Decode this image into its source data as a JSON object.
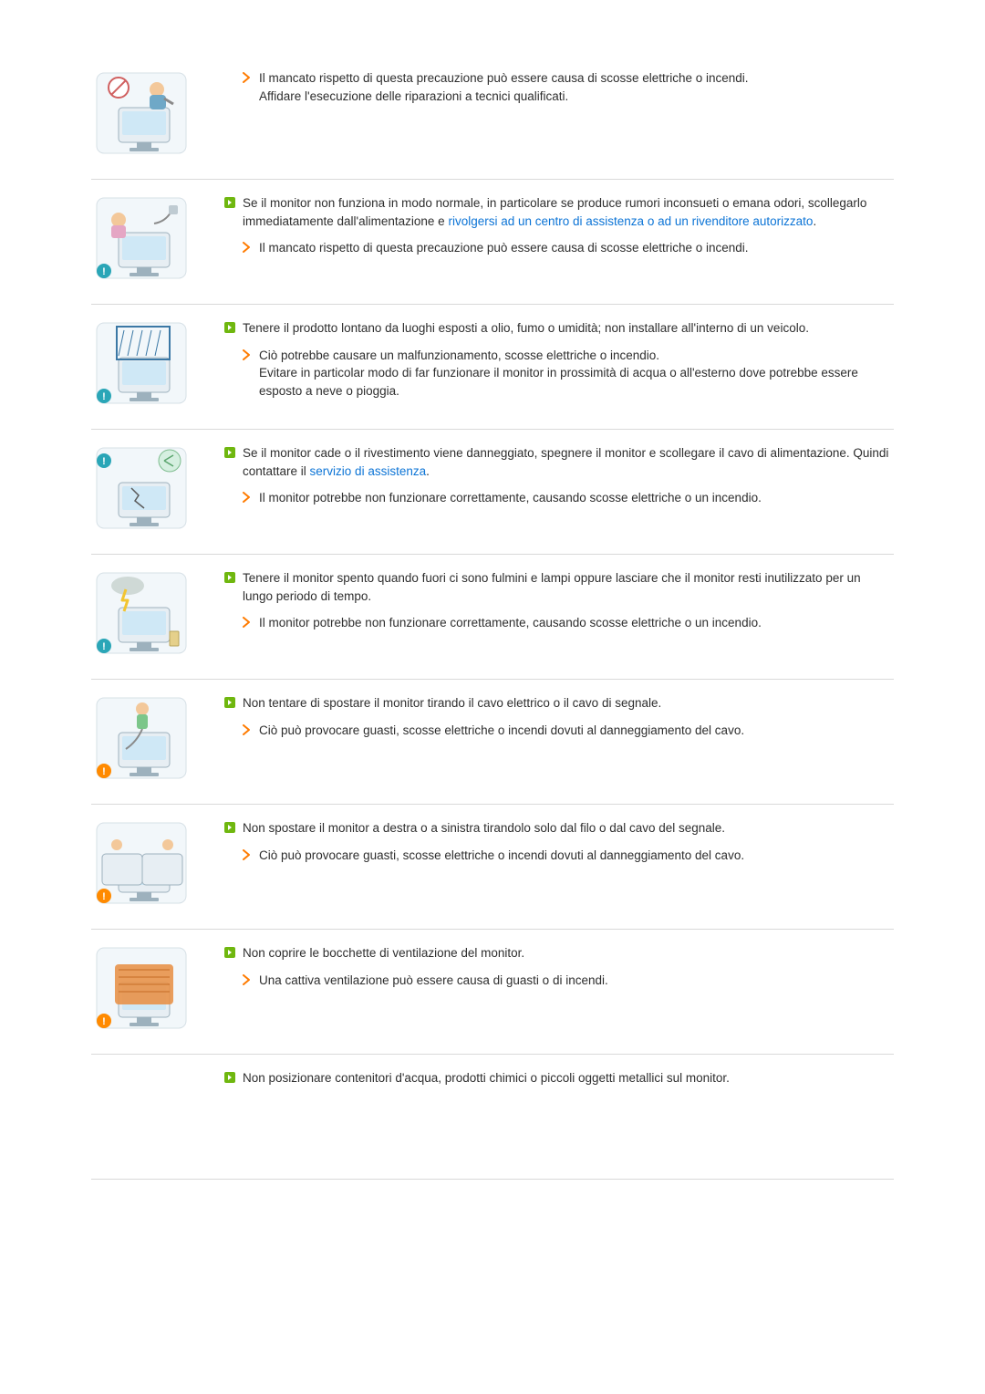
{
  "colors": {
    "text": "#2e2e2e",
    "link": "#0c74d6",
    "bullet_green": "#6fb70f",
    "bullet_orange": "#ff7b00",
    "divider": "#d9d9d9",
    "background": "#ffffff"
  },
  "typography": {
    "font_family": "Arial",
    "body_size_pt": 10,
    "line_height": 1.45
  },
  "sections": [
    {
      "has_illustration": true,
      "illustration_name": "repairman-monitor-icon",
      "has_lead": false,
      "sub": {
        "main": "Il mancato rispetto di questa precauzione può essere causa di scosse elettriche o incendi.",
        "extra": "Affidare l'esecuzione delle riparazioni a tecnici qualificati."
      }
    },
    {
      "has_illustration": true,
      "illustration_name": "unplug-monitor-icon",
      "lead": {
        "before": "Se il monitor non funziona in modo normale, in particolare se produce rumori inconsueti o emana odori, scollegarlo immediatamente dall'alimentazione e ",
        "link": "rivolgersi ad un centro di assistenza o ad un rivenditore autorizzato",
        "after": "."
      },
      "sub": {
        "main": "Il mancato rispetto di questa precauzione può essere causa di scosse elettriche o incendi."
      }
    },
    {
      "has_illustration": true,
      "illustration_name": "humidity-monitor-icon",
      "lead": {
        "before": "Tenere il prodotto lontano da luoghi esposti a olio, fumo o umidità; non installare all'interno di un veicolo."
      },
      "sub": {
        "main": "Ciò potrebbe causare un malfunzionamento, scosse elettriche o incendio.",
        "extra": "Evitare in particolar modo di far funzionare il monitor in prossimità di acqua o all'esterno dove potrebbe essere esposto a neve o pioggia."
      }
    },
    {
      "has_illustration": true,
      "illustration_name": "cracked-monitor-icon",
      "lead": {
        "before": "Se il monitor cade o il rivestimento viene danneggiato, spegnere il monitor e scollegare il cavo di alimentazione. Quindi contattare il ",
        "link": "servizio di assistenza",
        "after": "."
      },
      "sub": {
        "main": "Il monitor potrebbe non funzionare correttamente, causando scosse elettriche o un incendio."
      }
    },
    {
      "has_illustration": true,
      "illustration_name": "lightning-monitor-icon",
      "lead": {
        "before": "Tenere il monitor spento quando fuori ci sono fulmini e lampi oppure lasciare che il monitor resti inutilizzato per un lungo periodo di tempo."
      },
      "sub": {
        "main": "Il monitor potrebbe non funzionare correttamente, causando scosse elettriche o un incendio."
      }
    },
    {
      "has_illustration": true,
      "illustration_name": "pull-cable-icon",
      "lead": {
        "before": "Non tentare di spostare il monitor tirando il cavo elettrico o il cavo di segnale."
      },
      "sub": {
        "main": "Ciò può provocare guasti, scosse elettriche o incendi dovuti al danneggiamento del cavo."
      }
    },
    {
      "has_illustration": true,
      "illustration_name": "move-sideways-icon",
      "lead": {
        "before": "Non spostare il monitor a destra o a sinistra tirandolo solo dal filo o dal cavo del segnale."
      },
      "sub": {
        "main": "Ciò può provocare guasti, scosse elettriche o incendi dovuti al danneggiamento del cavo."
      }
    },
    {
      "has_illustration": true,
      "illustration_name": "cover-vents-icon",
      "lead": {
        "before": "Non coprire le bocchette di ventilazione del monitor."
      },
      "sub": {
        "main": "Una cattiva ventilazione può essere causa di guasti o di incendi."
      }
    },
    {
      "has_illustration": false,
      "illustration_name": "water-on-monitor-icon",
      "lead": {
        "before": "Non posizionare contenitori d'acqua, prodotti chimici o piccoli oggetti metallici sul monitor."
      }
    }
  ]
}
